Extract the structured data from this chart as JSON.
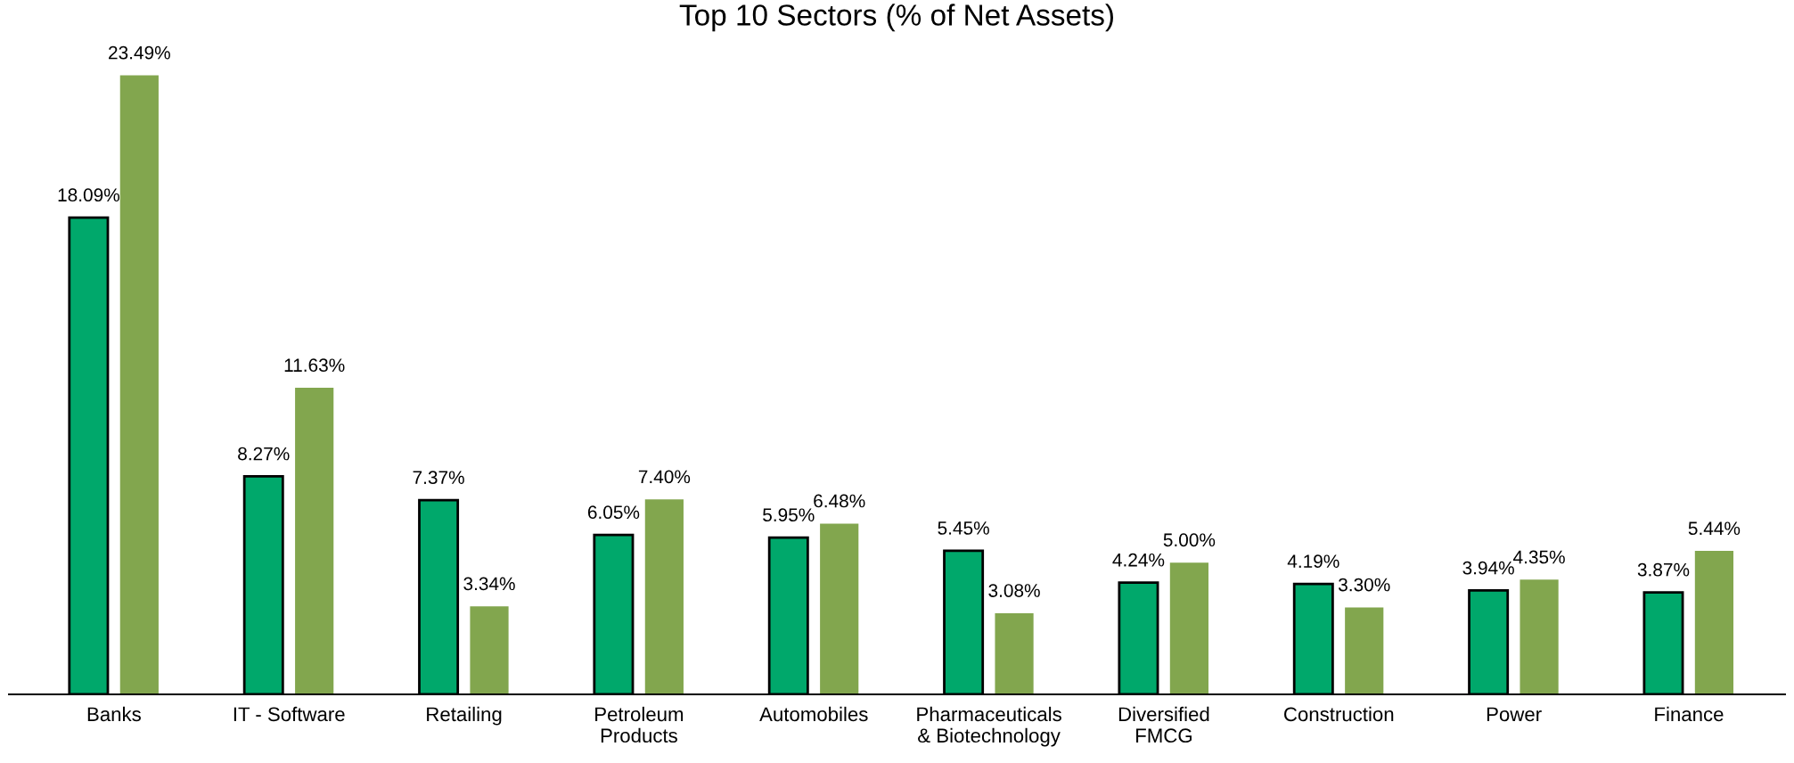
{
  "chart_data": {
    "type": "bar",
    "title": "Top 10 Sectors (% of Net Assets)",
    "categories": [
      "Banks",
      "IT - Software",
      "Retailing",
      "Petroleum\nProducts",
      "Automobiles",
      "Pharmaceuticals\n& Biotechnology",
      "Diversified\nFMCG",
      "Construction",
      "Power",
      "Finance"
    ],
    "series": [
      {
        "color": "#00a86b",
        "values": [
          18.09,
          8.27,
          7.37,
          6.05,
          5.95,
          5.45,
          4.24,
          4.19,
          3.94,
          3.87
        ],
        "value_labels": [
          "18.09%",
          "8.27%",
          "7.37%",
          "6.05%",
          "5.95%",
          "5.45%",
          "4.24%",
          "4.19%",
          "3.94%",
          "3.87%"
        ]
      },
      {
        "color": "#82a64e",
        "values": [
          23.49,
          11.63,
          3.34,
          7.4,
          6.48,
          3.08,
          5.0,
          3.3,
          4.35,
          5.44
        ],
        "value_labels": [
          "23.49%",
          "11.63%",
          "3.34%",
          "7.40%",
          "6.48%",
          "3.08%",
          "5.00%",
          "3.30%",
          "4.35%",
          "5.44%"
        ]
      }
    ],
    "grid": false,
    "legend": false
  }
}
